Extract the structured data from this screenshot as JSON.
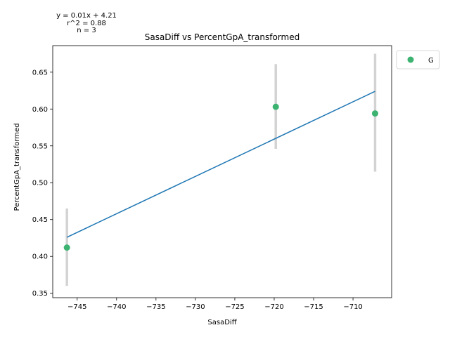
{
  "chart_data": {
    "type": "scatter",
    "title": "SasaDiff vs PercentGpA_transformed",
    "xlabel": "SasaDiff",
    "ylabel": "PercentGpA_transformed",
    "xlim": [
      -748.1,
      -705.1
    ],
    "ylim": [
      0.344,
      0.686
    ],
    "x_ticks": [
      -745,
      -740,
      -735,
      -730,
      -725,
      -720,
      -715,
      -710
    ],
    "y_ticks": [
      0.35,
      0.4,
      0.45,
      0.5,
      0.55,
      0.6,
      0.65
    ],
    "x_tick_labels": [
      "−745",
      "−740",
      "−735",
      "−730",
      "−725",
      "−720",
      "−715",
      "−710"
    ],
    "y_tick_labels": [
      "0.35",
      "0.40",
      "0.45",
      "0.50",
      "0.55",
      "0.60",
      "0.65"
    ],
    "grid": false,
    "legend_position": "outside-top-right",
    "series": [
      {
        "name": "G",
        "color": "#3cb371",
        "points": [
          {
            "x": -746.3,
            "y": 0.412,
            "err_low": 0.36,
            "err_high": 0.465
          },
          {
            "x": -719.8,
            "y": 0.603,
            "err_low": 0.546,
            "err_high": 0.661
          },
          {
            "x": -707.2,
            "y": 0.594,
            "err_low": 0.515,
            "err_high": 0.675
          }
        ]
      }
    ],
    "error_bar_color": "#d3d3d3",
    "fit_line": {
      "color": "#1f77b4",
      "points": [
        [
          -746.3,
          0.426
        ],
        [
          -707.2,
          0.624
        ]
      ]
    },
    "annotations": [
      "y = 0.01x + 4.21",
      "r^2 = 0.88",
      "n = 3"
    ]
  }
}
